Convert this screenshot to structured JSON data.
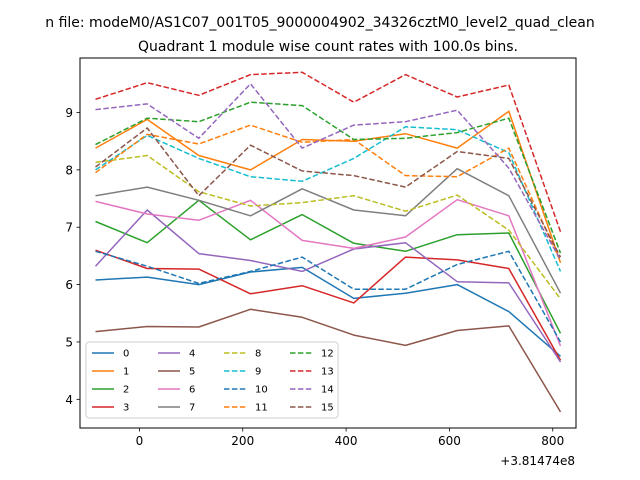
{
  "chart_data": {
    "type": "line",
    "suptitle": "n file: modeM0/AS1C07_001T05_9000004902_34326cztM0_level2_quad_clean",
    "title": "Quadrant 1 module wise count rates with 100.0s bins.",
    "xlabel": "",
    "ylabel": "",
    "x_offset_label": "+3.81474e8",
    "xlim": [
      -115,
      845
    ],
    "ylim": [
      3.5,
      9.95
    ],
    "xticks": [
      0,
      200,
      400,
      600,
      800
    ],
    "yticks": [
      4,
      5,
      6,
      7,
      8,
      9
    ],
    "grid": false,
    "legend": {
      "location": "lower-left",
      "ncol": 4
    },
    "x": [
      -85,
      15,
      115,
      215,
      315,
      415,
      515,
      615,
      715,
      815
    ],
    "series": [
      {
        "name": "0",
        "color": "#1f77b4",
        "dash": "solid",
        "values": [
          6.08,
          6.13,
          6.0,
          6.22,
          6.3,
          5.76,
          5.85,
          6.0,
          5.53,
          4.75
        ]
      },
      {
        "name": "1",
        "color": "#ff7f0e",
        "dash": "solid",
        "values": [
          8.38,
          8.88,
          8.25,
          8.0,
          8.53,
          8.5,
          8.63,
          8.38,
          9.02,
          6.38
        ]
      },
      {
        "name": "2",
        "color": "#2ca02c",
        "dash": "solid",
        "values": [
          7.1,
          6.73,
          7.47,
          6.78,
          7.22,
          6.72,
          6.58,
          6.87,
          6.9,
          5.15
        ]
      },
      {
        "name": "3",
        "color": "#d62728",
        "dash": "solid",
        "values": [
          6.6,
          6.28,
          6.27,
          5.84,
          5.98,
          5.68,
          6.48,
          6.43,
          6.28,
          4.68
        ]
      },
      {
        "name": "4",
        "color": "#9467bd",
        "dash": "solid",
        "values": [
          6.32,
          7.3,
          6.54,
          6.42,
          6.23,
          6.62,
          6.73,
          6.05,
          6.03,
          4.65
        ]
      },
      {
        "name": "5",
        "color": "#8c564b",
        "dash": "solid",
        "values": [
          5.18,
          5.27,
          5.26,
          5.57,
          5.43,
          5.12,
          4.94,
          5.2,
          5.28,
          3.78
        ]
      },
      {
        "name": "6",
        "color": "#e377c2",
        "dash": "solid",
        "values": [
          7.45,
          7.23,
          7.12,
          7.47,
          6.77,
          6.63,
          6.83,
          7.48,
          7.2,
          4.93
        ]
      },
      {
        "name": "7",
        "color": "#7f7f7f",
        "dash": "solid",
        "values": [
          7.55,
          7.7,
          7.47,
          7.2,
          7.67,
          7.3,
          7.2,
          8.02,
          7.55,
          5.85
        ]
      },
      {
        "name": "8",
        "color": "#bcbd22",
        "dash": "dashed",
        "values": [
          8.13,
          8.25,
          7.62,
          7.37,
          7.43,
          7.55,
          7.28,
          7.56,
          6.95,
          5.75
        ]
      },
      {
        "name": "9",
        "color": "#17becf",
        "dash": "dashed",
        "values": [
          8.0,
          8.6,
          8.2,
          7.88,
          7.8,
          8.2,
          8.75,
          8.7,
          8.3,
          6.23
        ]
      },
      {
        "name": "10",
        "color": "#1f77b4",
        "dash": "dashed",
        "values": [
          6.58,
          6.32,
          6.02,
          6.23,
          6.48,
          5.92,
          5.92,
          6.35,
          6.58,
          5.0
        ]
      },
      {
        "name": "11",
        "color": "#ff7f0e",
        "dash": "dashed",
        "values": [
          7.95,
          8.62,
          8.45,
          8.78,
          8.48,
          8.53,
          7.9,
          7.88,
          8.38,
          6.4
        ]
      },
      {
        "name": "12",
        "color": "#2ca02c",
        "dash": "dashed",
        "values": [
          8.44,
          8.9,
          8.84,
          9.18,
          9.12,
          8.53,
          8.55,
          8.65,
          8.9,
          6.55
        ]
      },
      {
        "name": "13",
        "color": "#d62728",
        "dash": "dashed",
        "values": [
          9.23,
          9.52,
          9.3,
          9.66,
          9.7,
          9.18,
          9.66,
          9.27,
          9.48,
          6.92
        ]
      },
      {
        "name": "14",
        "color": "#9467bd",
        "dash": "dashed",
        "values": [
          9.05,
          9.15,
          8.55,
          9.5,
          8.38,
          8.78,
          8.84,
          9.04,
          8.03,
          6.43
        ]
      },
      {
        "name": "15",
        "color": "#8c564b",
        "dash": "dashed",
        "values": [
          8.05,
          8.73,
          7.55,
          8.43,
          7.98,
          7.9,
          7.7,
          8.32,
          8.2,
          6.48
        ]
      }
    ]
  }
}
